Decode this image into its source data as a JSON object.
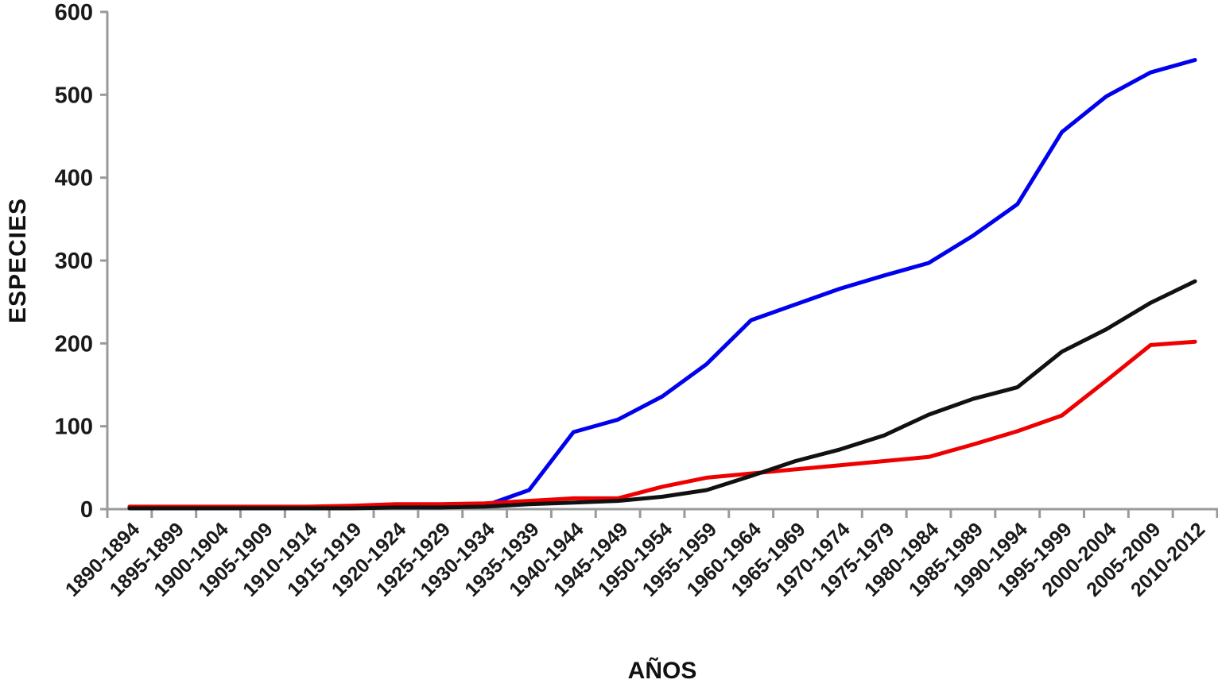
{
  "chart_data": {
    "type": "line",
    "title": "",
    "xlabel": "AÑOS",
    "ylabel": "ESPECIES",
    "ylim": [
      0,
      600
    ],
    "yticks": [
      0,
      100,
      200,
      300,
      400,
      500,
      600
    ],
    "grid": false,
    "legend": "none",
    "axis_color": "#9a9a9a",
    "tick_label_color": "#1a1a1a",
    "categories": [
      "1890-1894",
      "1895-1899",
      "1900-1904",
      "1905-1909",
      "1910-1914",
      "1915-1919",
      "1920-1924",
      "1925-1929",
      "1930-1934",
      "1935-1939",
      "1940-1944",
      "1945-1949",
      "1950-1954",
      "1955-1959",
      "1960-1964",
      "1965-1969",
      "1970-1974",
      "1975-1979",
      "1980-1984",
      "1985-1989",
      "1990-1994",
      "1995-1999",
      "2000-2004",
      "2005-2009",
      "2010-2012"
    ],
    "series": [
      {
        "name": "blue-series",
        "color": "#0000ee",
        "values": [
          2,
          2,
          2,
          2,
          2,
          2,
          2,
          2,
          4,
          23,
          93,
          108,
          136,
          175,
          228,
          247,
          266,
          282,
          297,
          330,
          368,
          455,
          498,
          527,
          542
        ]
      },
      {
        "name": "red-series",
        "color": "#ee0000",
        "values": [
          3,
          3,
          3,
          3,
          3,
          4,
          6,
          6,
          7,
          10,
          13,
          13,
          27,
          38,
          43,
          48,
          53,
          58,
          63,
          78,
          94,
          113,
          155,
          198,
          202
        ]
      },
      {
        "name": "black-series",
        "color": "#111111",
        "values": [
          1,
          1,
          1,
          1,
          1,
          1,
          2,
          2,
          3,
          6,
          8,
          10,
          15,
          23,
          40,
          58,
          72,
          89,
          114,
          133,
          147,
          190,
          217,
          249,
          275
        ]
      }
    ]
  }
}
